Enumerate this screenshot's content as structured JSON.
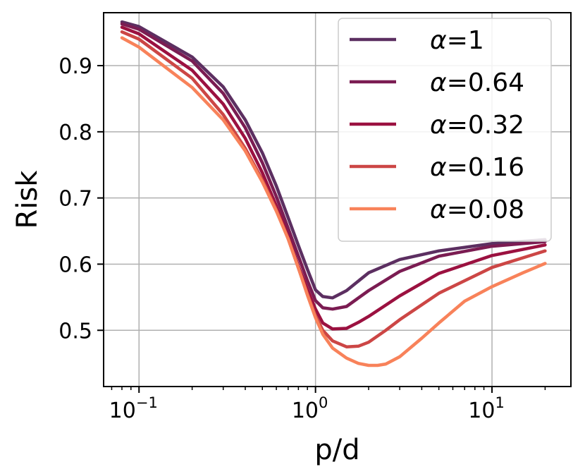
{
  "chart_data": {
    "type": "line",
    "title": "",
    "xlabel": "p/d",
    "ylabel": "Risk",
    "xscale": "log",
    "xlim": [
      0.063,
      28
    ],
    "ylim": [
      0.415,
      0.98
    ],
    "grid": true,
    "legend_position": "top-right",
    "x_ticks": [
      {
        "value": 0.1,
        "base": "10",
        "exp": "−1"
      },
      {
        "value": 1,
        "base": "10",
        "exp": "0"
      },
      {
        "value": 10,
        "base": "10",
        "exp": "1"
      }
    ],
    "y_ticks": [
      {
        "value": 0.5,
        "label": "0.5"
      },
      {
        "value": 0.6,
        "label": "0.6"
      },
      {
        "value": 0.7,
        "label": "0.7"
      },
      {
        "value": 0.8,
        "label": "0.8"
      },
      {
        "value": 0.9,
        "label": "0.9"
      }
    ],
    "series": [
      {
        "name": "α=1",
        "greek": "α",
        "suffix": "=1",
        "color": "#5c2f61",
        "x": [
          0.08,
          0.1,
          0.2,
          0.3,
          0.4,
          0.5,
          0.6,
          0.7,
          0.8,
          0.9,
          1.0,
          1.1,
          1.25,
          1.5,
          2,
          3,
          5,
          10,
          20
        ],
        "y": [
          0.966,
          0.959,
          0.913,
          0.868,
          0.818,
          0.768,
          0.718,
          0.67,
          0.628,
          0.592,
          0.561,
          0.551,
          0.549,
          0.56,
          0.587,
          0.607,
          0.62,
          0.631,
          0.637
        ]
      },
      {
        "name": "α=0.64",
        "greek": "α",
        "suffix": "=0.64",
        "color": "#7b1c52",
        "x": [
          0.08,
          0.1,
          0.2,
          0.3,
          0.4,
          0.5,
          0.6,
          0.7,
          0.8,
          0.9,
          1.0,
          1.1,
          1.25,
          1.5,
          2,
          3,
          5,
          10,
          20
        ],
        "y": [
          0.963,
          0.955,
          0.907,
          0.858,
          0.806,
          0.753,
          0.702,
          0.654,
          0.612,
          0.575,
          0.545,
          0.534,
          0.532,
          0.536,
          0.56,
          0.589,
          0.612,
          0.627,
          0.634
        ]
      },
      {
        "name": "α=0.32",
        "greek": "α",
        "suffix": "=0.32",
        "color": "#9b1140",
        "x": [
          0.08,
          0.1,
          0.2,
          0.3,
          0.4,
          0.5,
          0.6,
          0.7,
          0.8,
          0.9,
          1.0,
          1.1,
          1.25,
          1.5,
          1.75,
          2,
          3,
          5,
          10,
          20
        ],
        "y": [
          0.958,
          0.948,
          0.893,
          0.842,
          0.79,
          0.738,
          0.688,
          0.642,
          0.597,
          0.562,
          0.532,
          0.511,
          0.502,
          0.503,
          0.512,
          0.521,
          0.552,
          0.586,
          0.613,
          0.629
        ]
      },
      {
        "name": "α=0.16",
        "greek": "α",
        "suffix": "=0.16",
        "color": "#cc4645",
        "x": [
          0.08,
          0.1,
          0.2,
          0.3,
          0.4,
          0.5,
          0.6,
          0.7,
          0.8,
          0.9,
          1.0,
          1.1,
          1.25,
          1.5,
          1.75,
          2,
          2.5,
          3,
          5,
          10,
          20
        ],
        "y": [
          0.951,
          0.94,
          0.881,
          0.826,
          0.775,
          0.727,
          0.682,
          0.638,
          0.594,
          0.555,
          0.522,
          0.5,
          0.484,
          0.475,
          0.476,
          0.482,
          0.5,
          0.516,
          0.556,
          0.595,
          0.62
        ]
      },
      {
        "name": "α=0.08",
        "greek": "α",
        "suffix": "=0.08",
        "color": "#f8825a",
        "x": [
          0.08,
          0.1,
          0.2,
          0.3,
          0.4,
          0.5,
          0.6,
          0.7,
          0.8,
          0.9,
          1.0,
          1.1,
          1.25,
          1.5,
          1.75,
          2,
          2.25,
          2.5,
          3,
          4,
          5,
          7,
          10,
          15,
          20
        ],
        "y": [
          0.942,
          0.928,
          0.867,
          0.818,
          0.771,
          0.724,
          0.68,
          0.638,
          0.594,
          0.553,
          0.519,
          0.494,
          0.473,
          0.458,
          0.45,
          0.447,
          0.447,
          0.449,
          0.46,
          0.488,
          0.511,
          0.544,
          0.566,
          0.587,
          0.601
        ]
      }
    ]
  }
}
